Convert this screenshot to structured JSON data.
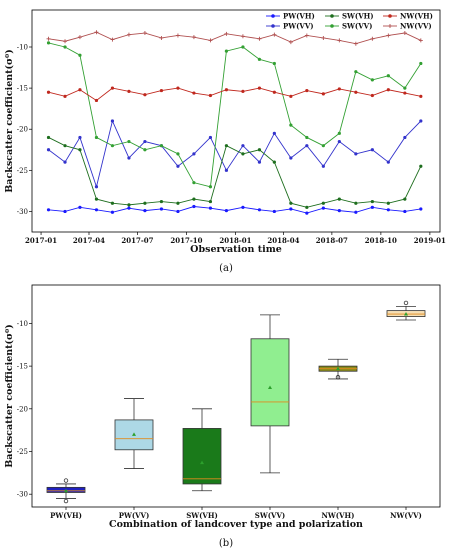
{
  "chart_data": [
    {
      "type": "line",
      "ylabel": "Backscatter coefficient(σ⁰)",
      "xlabel": "Observation time",
      "caption": "(a)",
      "x_ticks": [
        "2017-01",
        "2017-04",
        "2017-07",
        "2017-10",
        "2018-01",
        "2018-04",
        "2018-07",
        "2018-10",
        "2019-01"
      ],
      "y_ticks": [
        "-10",
        "-15",
        "-20",
        "-25",
        "-30"
      ],
      "ylim": [
        -32.5,
        -5.5
      ],
      "xlim": [
        "2016-12-15",
        "2019-01-20"
      ],
      "grid": false,
      "legend_position": "top-right",
      "series": [
        {
          "name": "PW(VH)",
          "color": "#1a1aff",
          "marker": "circle",
          "x": [
            "2017-01",
            "2017-02",
            "2017-03",
            "2017-04",
            "2017-05",
            "2017-06",
            "2017-07",
            "2017-08",
            "2017-09",
            "2017-10",
            "2017-11",
            "2017-12",
            "2018-01",
            "2018-02",
            "2018-03",
            "2018-04",
            "2018-05",
            "2018-06",
            "2018-07",
            "2018-08",
            "2018-09",
            "2018-10",
            "2018-11",
            "2018-12"
          ],
          "y": [
            -29.8,
            -30.0,
            -29.5,
            -29.8,
            -30.1,
            -29.6,
            -29.9,
            -29.7,
            -30.0,
            -29.4,
            -29.6,
            -29.9,
            -29.5,
            -29.8,
            -30.0,
            -29.7,
            -30.2,
            -29.6,
            -29.9,
            -30.1,
            -29.5,
            -29.8,
            -30.0,
            -29.7
          ]
        },
        {
          "name": "PW(VV)",
          "color": "#3333cc",
          "marker": "circle",
          "x": [
            "2017-01",
            "2017-02",
            "2017-03",
            "2017-04",
            "2017-05",
            "2017-06",
            "2017-07",
            "2017-08",
            "2017-09",
            "2017-10",
            "2017-11",
            "2017-12",
            "2018-01",
            "2018-02",
            "2018-03",
            "2018-04",
            "2018-05",
            "2018-06",
            "2018-07",
            "2018-08",
            "2018-09",
            "2018-10",
            "2018-11",
            "2018-12"
          ],
          "y": [
            -22.5,
            -24.0,
            -21.0,
            -27.0,
            -19.0,
            -23.5,
            -21.5,
            -22.0,
            -24.5,
            -23.0,
            -21.0,
            -25.0,
            -22.0,
            -24.0,
            -20.5,
            -23.5,
            -22.0,
            -24.5,
            -21.5,
            -23.0,
            -22.5,
            -24.0,
            -21.0,
            -19.0
          ]
        },
        {
          "name": "SW(VH)",
          "color": "#1e6e1e",
          "marker": "circle",
          "x": [
            "2017-01",
            "2017-02",
            "2017-03",
            "2017-04",
            "2017-05",
            "2017-06",
            "2017-07",
            "2017-08",
            "2017-09",
            "2017-10",
            "2017-11",
            "2017-12",
            "2018-01",
            "2018-02",
            "2018-03",
            "2018-04",
            "2018-05",
            "2018-06",
            "2018-07",
            "2018-08",
            "2018-09",
            "2018-10",
            "2018-11",
            "2018-12"
          ],
          "y": [
            -21.0,
            -22.0,
            -22.5,
            -28.5,
            -29.0,
            -29.2,
            -29.0,
            -28.8,
            -29.0,
            -28.5,
            -28.8,
            -22.0,
            -23.0,
            -22.5,
            -24.0,
            -29.0,
            -29.5,
            -29.0,
            -28.5,
            -29.0,
            -28.8,
            -29.0,
            -28.5,
            -24.5
          ]
        },
        {
          "name": "SW(VV)",
          "color": "#33a033",
          "marker": "circle",
          "x": [
            "2017-01",
            "2017-02",
            "2017-03",
            "2017-04",
            "2017-05",
            "2017-06",
            "2017-07",
            "2017-08",
            "2017-09",
            "2017-10",
            "2017-11",
            "2017-12",
            "2018-01",
            "2018-02",
            "2018-03",
            "2018-04",
            "2018-05",
            "2018-06",
            "2018-07",
            "2018-08",
            "2018-09",
            "2018-10",
            "2018-11",
            "2018-12"
          ],
          "y": [
            -9.5,
            -10.0,
            -11.0,
            -21.0,
            -22.0,
            -21.5,
            -22.5,
            -22.0,
            -23.0,
            -26.5,
            -27.0,
            -10.5,
            -10.0,
            -11.5,
            -12.0,
            -19.5,
            -21.0,
            -22.0,
            -20.5,
            -13.0,
            -14.0,
            -13.5,
            -15.0,
            -12.0
          ]
        },
        {
          "name": "NW(VH)",
          "color": "#c0281e",
          "marker": "circle",
          "x": [
            "2017-01",
            "2017-02",
            "2017-03",
            "2017-04",
            "2017-05",
            "2017-06",
            "2017-07",
            "2017-08",
            "2017-09",
            "2017-10",
            "2017-11",
            "2017-12",
            "2018-01",
            "2018-02",
            "2018-03",
            "2018-04",
            "2018-05",
            "2018-06",
            "2018-07",
            "2018-08",
            "2018-09",
            "2018-10",
            "2018-11",
            "2018-12"
          ],
          "y": [
            -15.5,
            -16.0,
            -15.2,
            -16.5,
            -15.0,
            -15.4,
            -15.8,
            -15.3,
            -15.0,
            -15.6,
            -15.9,
            -15.2,
            -15.4,
            -15.0,
            -15.5,
            -16.0,
            -15.3,
            -15.7,
            -15.1,
            -15.5,
            -15.9,
            -15.2,
            -15.6,
            -16.0
          ]
        },
        {
          "name": "NW(VV)",
          "color": "#b05050",
          "marker": "plus",
          "x": [
            "2017-01",
            "2017-02",
            "2017-03",
            "2017-04",
            "2017-05",
            "2017-06",
            "2017-07",
            "2017-08",
            "2017-09",
            "2017-10",
            "2017-11",
            "2017-12",
            "2018-01",
            "2018-02",
            "2018-03",
            "2018-04",
            "2018-05",
            "2018-06",
            "2018-07",
            "2018-08",
            "2018-09",
            "2018-10",
            "2018-11",
            "2018-12"
          ],
          "y": [
            -9.0,
            -9.3,
            -8.8,
            -8.2,
            -9.1,
            -8.5,
            -8.3,
            -8.9,
            -8.6,
            -8.8,
            -9.2,
            -8.4,
            -8.7,
            -9.0,
            -8.5,
            -9.4,
            -8.6,
            -8.9,
            -9.2,
            -9.6,
            -9.0,
            -8.6,
            -8.3,
            -9.2
          ]
        }
      ]
    },
    {
      "type": "box",
      "ylabel": "Backscatter coefficient(σ⁰)",
      "xlabel": "Combination of landcover type and polarization",
      "caption": "(b)",
      "y_ticks": [
        "-10",
        "-15",
        "-20",
        "-25",
        "-30"
      ],
      "ylim": [
        -31.5,
        -5.5
      ],
      "grid": false,
      "boxes": [
        {
          "label": "PW(VH)",
          "min": -30.5,
          "q1": -29.8,
          "median": -29.6,
          "q3": -29.2,
          "max": -28.8,
          "mean": -29.6,
          "outliers": [
            -28.4,
            -30.8
          ],
          "color": "#2020c0"
        },
        {
          "label": "PW(VV)",
          "min": -27.0,
          "q1": -24.8,
          "median": -23.5,
          "q3": -21.3,
          "max": -18.8,
          "mean": -23.0,
          "outliers": [],
          "color": "#add8e6"
        },
        {
          "label": "SW(VH)",
          "min": -29.6,
          "q1": -28.8,
          "median": -28.2,
          "q3": -22.3,
          "max": -20.0,
          "mean": -26.3,
          "outliers": [],
          "color": "#1a7a1a"
        },
        {
          "label": "SW(VV)",
          "min": -27.5,
          "q1": -22.0,
          "median": -19.2,
          "q3": -11.8,
          "max": -9.0,
          "mean": -17.5,
          "outliers": [],
          "color": "#90ee90"
        },
        {
          "label": "NW(VH)",
          "min": -16.5,
          "q1": -15.6,
          "median": -15.3,
          "q3": -15.0,
          "max": -14.2,
          "mean": -15.3,
          "outliers": [
            -16.3
          ],
          "color": "#8b8b1a"
        },
        {
          "label": "NW(VV)",
          "min": -9.6,
          "q1": -9.2,
          "median": -8.9,
          "q3": -8.5,
          "max": -8.0,
          "mean": -8.9,
          "outliers": [
            -7.6
          ],
          "color": "#f5deb3"
        }
      ]
    }
  ]
}
